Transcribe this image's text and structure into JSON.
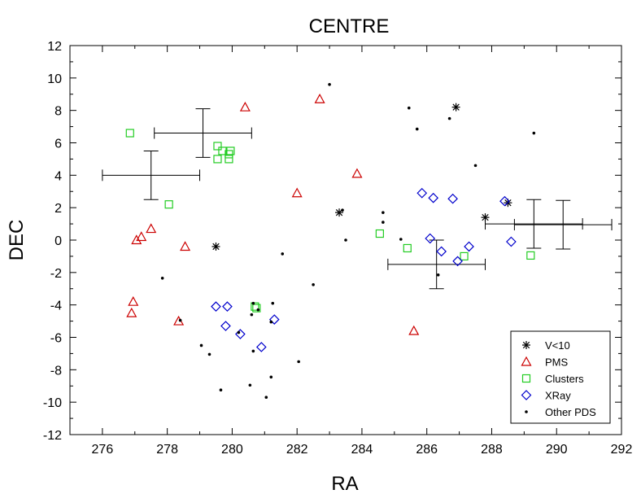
{
  "chart_data": {
    "type": "scatter",
    "title": "CENTRE",
    "xlabel": "RA",
    "ylabel": "DEC",
    "xlim": [
      275,
      292
    ],
    "ylim": [
      -12,
      12
    ],
    "xticks": [
      276,
      278,
      280,
      282,
      284,
      286,
      288,
      290,
      292
    ],
    "yticks": [
      -12,
      -10,
      -8,
      -6,
      -4,
      -2,
      0,
      2,
      4,
      6,
      8,
      10,
      12
    ],
    "grid": false,
    "legend_position": "bottom-right",
    "colors": {
      "V<10": "#000000",
      "PMS": "#cc0000",
      "Clusters": "#22cc22",
      "XRay": "#0000cc",
      "Other PDS": "#000000"
    },
    "series": [
      {
        "name": "V<10",
        "marker": "asterisk",
        "points": [
          [
            279.5,
            -0.4
          ],
          [
            283.3,
            1.7
          ],
          [
            286.9,
            8.2
          ],
          [
            287.8,
            1.4
          ],
          [
            288.5,
            2.3
          ]
        ]
      },
      {
        "name": "PMS",
        "marker": "triangle",
        "points": [
          [
            276.9,
            -4.5
          ],
          [
            276.95,
            -3.8
          ],
          [
            277.05,
            0.0
          ],
          [
            277.2,
            0.2
          ],
          [
            277.5,
            0.7
          ],
          [
            278.35,
            -5.0
          ],
          [
            278.55,
            -0.4
          ],
          [
            280.4,
            8.2
          ],
          [
            282.0,
            2.9
          ],
          [
            282.7,
            8.7
          ],
          [
            283.85,
            4.1
          ],
          [
            285.6,
            -5.6
          ]
        ]
      },
      {
        "name": "Clusters",
        "marker": "square",
        "points": [
          [
            276.85,
            6.6
          ],
          [
            278.05,
            2.2
          ],
          [
            279.55,
            5.8
          ],
          [
            279.55,
            5.0
          ],
          [
            279.7,
            5.5
          ],
          [
            279.9,
            5.3
          ],
          [
            279.9,
            5.0
          ],
          [
            279.95,
            5.5
          ],
          [
            280.7,
            -4.1
          ],
          [
            280.75,
            -4.2
          ],
          [
            284.55,
            0.4
          ],
          [
            285.4,
            -0.5
          ],
          [
            287.15,
            -1.0
          ],
          [
            289.2,
            -0.95
          ]
        ]
      },
      {
        "name": "XRay",
        "marker": "diamond",
        "points": [
          [
            279.5,
            -4.1
          ],
          [
            279.8,
            -5.3
          ],
          [
            279.85,
            -4.1
          ],
          [
            280.25,
            -5.8
          ],
          [
            280.9,
            -6.6
          ],
          [
            281.3,
            -4.9
          ],
          [
            285.85,
            2.9
          ],
          [
            286.2,
            2.6
          ],
          [
            286.1,
            0.1
          ],
          [
            286.45,
            -0.7
          ],
          [
            286.95,
            -1.3
          ],
          [
            287.3,
            -0.4
          ],
          [
            286.8,
            2.55
          ],
          [
            288.4,
            2.4
          ],
          [
            288.6,
            -0.1
          ]
        ]
      },
      {
        "name": "Other PDS",
        "marker": "dot",
        "points": [
          [
            277.85,
            -2.35
          ],
          [
            278.4,
            -4.95
          ],
          [
            279.05,
            -6.5
          ],
          [
            279.3,
            -7.05
          ],
          [
            279.65,
            -9.25
          ],
          [
            280.2,
            -5.7
          ],
          [
            280.55,
            -8.95
          ],
          [
            280.6,
            -4.6
          ],
          [
            280.65,
            -6.85
          ],
          [
            280.65,
            -3.9
          ],
          [
            280.8,
            -4.3
          ],
          [
            281.05,
            -9.7
          ],
          [
            281.2,
            -8.45
          ],
          [
            281.2,
            -5.05
          ],
          [
            281.25,
            -3.9
          ],
          [
            281.55,
            -0.85
          ],
          [
            282.05,
            -7.5
          ],
          [
            282.5,
            -2.75
          ],
          [
            283.0,
            9.6
          ],
          [
            283.4,
            1.85
          ],
          [
            283.5,
            0.0
          ],
          [
            284.65,
            1.7
          ],
          [
            284.65,
            1.1
          ],
          [
            285.2,
            0.05
          ],
          [
            285.45,
            8.15
          ],
          [
            285.7,
            6.85
          ],
          [
            286.35,
            -2.15
          ],
          [
            286.7,
            7.5
          ],
          [
            287.5,
            4.6
          ],
          [
            289.3,
            6.6
          ]
        ]
      }
    ],
    "error_bars": [
      {
        "x": 277.5,
        "y": 4.0,
        "x_err": 1.5,
        "y_err": 1.5
      },
      {
        "x": 279.1,
        "y": 6.6,
        "x_err": 1.5,
        "y_err": 1.5
      },
      {
        "x": 286.3,
        "y": -1.5,
        "x_err": 1.5,
        "y_err": 1.5
      },
      {
        "x": 289.3,
        "y": 1.0,
        "x_err": 1.5,
        "y_err": 1.5
      },
      {
        "x": 290.2,
        "y": 0.95,
        "x_err": 1.5,
        "y_err": 1.5
      }
    ]
  }
}
